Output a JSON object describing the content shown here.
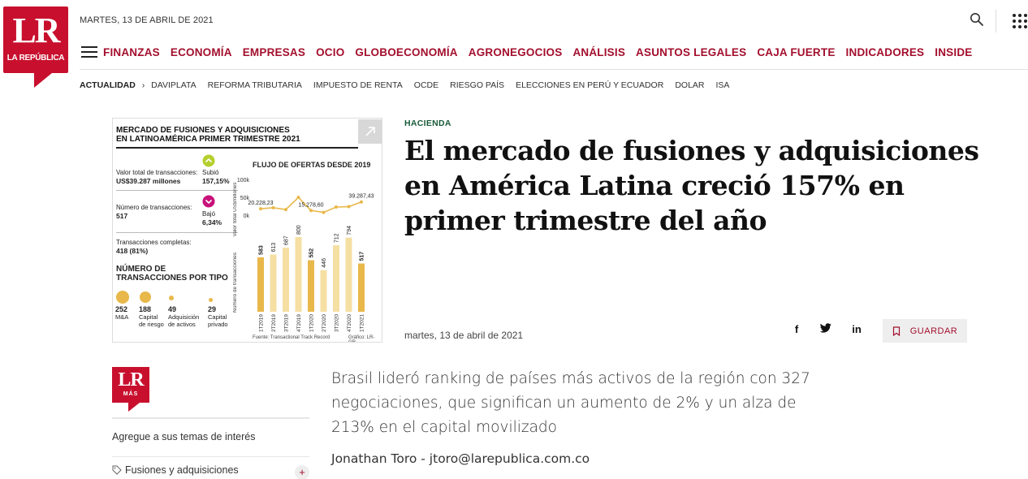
{
  "brand": {
    "logo_text": "LR",
    "logo_sub": "LA REPÚBLICA",
    "color": "#c8102e"
  },
  "header": {
    "date": "MARTES, 13 DE ABRIL DE 2021"
  },
  "nav": {
    "items": [
      "FINANZAS",
      "ECONOMÍA",
      "EMPRESAS",
      "OCIO",
      "GLOBOECONOMÍA",
      "AGRONEGOCIOS",
      "ANÁLISIS",
      "ASUNTOS LEGALES",
      "CAJA FUERTE",
      "INDICADORES",
      "INSIDE"
    ],
    "color": "#a30f2d"
  },
  "subnav": {
    "current": "ACTUALIDAD",
    "tags": [
      "DAVIPLATA",
      "REFORMA TRIBUTARIA",
      "IMPUESTO DE RENTA",
      "OCDE",
      "RIESGO PAÍS",
      "ELECCIONES EN PERÚ Y ECUADOR",
      "DOLAR",
      "ISA"
    ]
  },
  "infographic": {
    "title_line1": "MERCADO DE FUSIONES Y ADQUISICIONES",
    "title_line2": "EN LATINOAMÉRICA PRIMER TRIMESTRE 2021",
    "stats": [
      {
        "label": "Valor total de transacciones:",
        "value": "US$39.287 millones"
      },
      {
        "label": "Número de transacciones:",
        "value": "517"
      },
      {
        "label": "Transacciones completas:",
        "value": "418 (81%)"
      }
    ],
    "up": {
      "label": "Subió",
      "value": "157,15%"
    },
    "down": {
      "label": "Bajó",
      "value": "6,34%"
    },
    "types_title_line1": "NÚMERO DE",
    "types_title_line2": "TRANSACCIONES POR TIPO",
    "types": [
      {
        "value": "252",
        "label": "M&A"
      },
      {
        "value": "188",
        "label1": "Capital",
        "label2": "de riesgo"
      },
      {
        "value": "49",
        "label1": "Adquisición",
        "label2": "de activos"
      },
      {
        "value": "29",
        "label1": "Capital",
        "label2": "privado"
      }
    ],
    "flow_title": "FLUJO DE OFERTAS DESDE 2019",
    "source": "Fuente: Transactional Track Record",
    "credit": "Gráfico: LR-GR"
  },
  "chart_data": {
    "type": "bar",
    "title": "FLUJO DE OFERTAS DESDE 2019",
    "categories": [
      "1T2019",
      "2T2019",
      "3T2019",
      "4T2019",
      "1T2020",
      "2T2020",
      "3T2020",
      "4T2020",
      "1T2021"
    ],
    "series": [
      {
        "name": "",
        "values": [
          583,
          613,
          687,
          800,
          552,
          446,
          712,
          794,
          517
        ]
      }
    ],
    "ylabel": "Número de transacciones",
    "line": {
      "ylabel": "Valor total US$millones",
      "yticks": [
        "100k",
        "50k",
        "0k"
      ],
      "ylim": [
        0,
        100000
      ],
      "values": [
        20228.23,
        23000,
        18000,
        52000,
        15278.6,
        10000,
        25000,
        26000,
        39287.43
      ],
      "labels": [
        "20.228,23",
        "",
        "",
        "",
        "15.278,60",
        "",
        "",
        "",
        "39.287,43"
      ]
    },
    "colors": {
      "bar": "#f5dfa3",
      "bar_highlight": "#e8b84a",
      "line": "#e8b84a"
    }
  },
  "article": {
    "section": "HACIENDA",
    "headline": "El mercado de fusiones y adquisiciones en América Latina creció 157% en primer trimestre del año",
    "date": "martes, 13 de abril de 2021",
    "save_label": "GUARDAR",
    "lead": "Brasil lideró ranking de países más activos de la región con 327 negociaciones, que significan un aumento de 2% y un alza de 213% en el capital movilizado",
    "author": "Jonathan Toro - jtoro@larepublica.com.co"
  },
  "sidebar": {
    "logo_text": "LR",
    "logo_sub": "MÁS",
    "interest_label": "Agregue a sus temas de interés",
    "topic": "Fusiones y adquisiciones",
    "add_label": "+"
  },
  "share": {
    "facebook": "f",
    "linkedin": "in"
  }
}
